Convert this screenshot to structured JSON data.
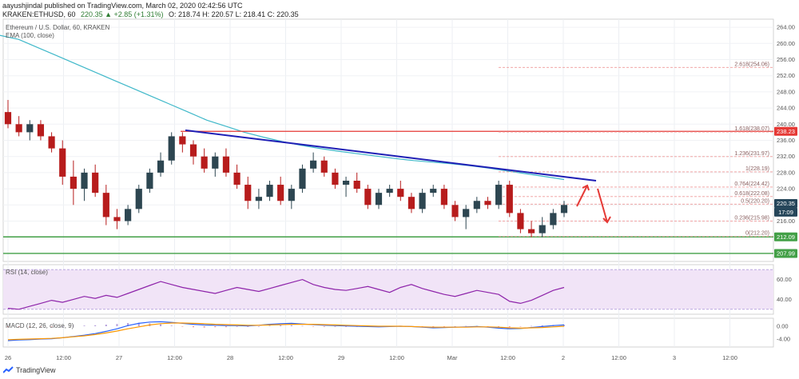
{
  "header": {
    "publisher": "aayushjindal published on TradingView.com, March 02, 2020 02:42:56 UTC",
    "ticker": "KRAKEN:ETHUSD, 60",
    "change": "220.35 ▲ +2.85 (+1.31%)",
    "ohlc": "O: 218.74 H: 220.57 L: 218.41 C: 220.35"
  },
  "overlays": {
    "symbol": "Ethereum / U.S. Dollar, 60, KRAKEN",
    "ema": "EMA (100, close)",
    "rsi": "RSI (14, close)",
    "macd": "MACD (12, 26, close, 9)"
  },
  "brand": "TradingView",
  "colors": {
    "up": "#2d4651",
    "down": "#b71c1c",
    "ema": "#3fb8c9",
    "trendline": "#1f1fb5",
    "resistance": "#e53935",
    "support": "#43a047",
    "fib": "#ef9a9a",
    "macd": "#2962ff",
    "signal": "#ff9800",
    "rsi": "#8e24aa"
  },
  "chart_data": [
    {
      "type": "candlestick",
      "panel": "price",
      "ylim": [
        206,
        266
      ],
      "y_ticks": [
        "264.00",
        "260.00",
        "256.00",
        "252.00",
        "248.00",
        "244.00",
        "240.00",
        "236.00",
        "232.00",
        "228.00",
        "224.00",
        "220.00",
        "216.00",
        "212.00",
        "208.00"
      ],
      "x_ticks": [
        "26",
        "12:00",
        "27",
        "12:00",
        "28",
        "12:00",
        "29",
        "12:00",
        "Mar",
        "12:00",
        "2",
        "12:00",
        "3",
        "12:00"
      ],
      "ema": [
        262,
        261,
        259,
        257,
        255,
        253,
        251,
        249,
        247,
        245,
        243,
        241,
        239.5,
        238,
        236.8,
        235.7,
        234.8,
        234,
        233.3,
        232.7,
        232.1,
        231.5,
        231,
        230.6,
        230.2,
        229.7,
        229.1,
        228.4,
        227.7,
        227,
        226.3
      ],
      "candles": [
        [
          243,
          246,
          239,
          240
        ],
        [
          240,
          242,
          237,
          238
        ],
        [
          238,
          241,
          236,
          240
        ],
        [
          240,
          241,
          236,
          237
        ],
        [
          237,
          238,
          233,
          234
        ],
        [
          234,
          236,
          225,
          227
        ],
        [
          227,
          231,
          220,
          224
        ],
        [
          224,
          229,
          221,
          228
        ],
        [
          228,
          230,
          222,
          223
        ],
        [
          223,
          225,
          215,
          217
        ],
        [
          217,
          219,
          214,
          216
        ],
        [
          216,
          220,
          215,
          219
        ],
        [
          219,
          225,
          218,
          224
        ],
        [
          224,
          229,
          223,
          228
        ],
        [
          228,
          233,
          227,
          231
        ],
        [
          231,
          238,
          230,
          237
        ],
        [
          237,
          238,
          233,
          235
        ],
        [
          235,
          236,
          230,
          232
        ],
        [
          232,
          234,
          228,
          229
        ],
        [
          229,
          233,
          227,
          232
        ],
        [
          232,
          234,
          227,
          228
        ],
        [
          228,
          230,
          224,
          225
        ],
        [
          225,
          227,
          219,
          221
        ],
        [
          221,
          224,
          219,
          222
        ],
        [
          222,
          226,
          221,
          225
        ],
        [
          225,
          227,
          220,
          221
        ],
        [
          221,
          225,
          219,
          224
        ],
        [
          224,
          230,
          223,
          229
        ],
        [
          229,
          233,
          228,
          231
        ],
        [
          231,
          232,
          227,
          228
        ],
        [
          228,
          229,
          224,
          225
        ],
        [
          225,
          227,
          222,
          226
        ],
        [
          226,
          228,
          223,
          224
        ],
        [
          224,
          225,
          219,
          220
        ],
        [
          220,
          224,
          219,
          223
        ],
        [
          223,
          225,
          222,
          224
        ],
        [
          224,
          226,
          221,
          222
        ],
        [
          222,
          223,
          218,
          219
        ],
        [
          219,
          224,
          218,
          223
        ],
        [
          223,
          225,
          222,
          224
        ],
        [
          224,
          225,
          219,
          220
        ],
        [
          220,
          221,
          216,
          217
        ],
        [
          217,
          220,
          214,
          219
        ],
        [
          219,
          222,
          218,
          221
        ],
        [
          221,
          222,
          219,
          220
        ],
        [
          220,
          226,
          219,
          225
        ],
        [
          225,
          226,
          217,
          218
        ],
        [
          218,
          219,
          213,
          214
        ],
        [
          214,
          216,
          212,
          213
        ],
        [
          213,
          217,
          212,
          215
        ],
        [
          215,
          219,
          214,
          218
        ],
        [
          218,
          221,
          217,
          220
        ]
      ],
      "fib_levels": [
        {
          "label": "2.618(254.06)",
          "value": 254.06
        },
        {
          "label": "1.618(238.07)",
          "value": 238.07
        },
        {
          "label": "1.236(231.97)",
          "value": 231.97
        },
        {
          "label": "1(228.19)",
          "value": 228.19
        },
        {
          "label": "0.764(224.42)",
          "value": 224.42
        },
        {
          "label": "0.618(222.08)",
          "value": 222.08
        },
        {
          "label": "0.5(220.20)",
          "value": 220.2
        },
        {
          "label": "0.236(215.98)",
          "value": 215.98
        },
        {
          "label": "0(212.20)",
          "value": 212.2
        }
      ],
      "resistance": 238.23,
      "support": [
        212.09,
        207.99
      ],
      "trendline": [
        238.5,
        226.0
      ],
      "price_badges": [
        {
          "label": "238.23",
          "value": 238.23,
          "color": "#e53935"
        },
        {
          "label": "220.35",
          "value": 220.35,
          "color": "#26465a"
        },
        {
          "label": "17:09",
          "value": 218.2,
          "color": "#26465a"
        },
        {
          "label": "212.09",
          "value": 212.09,
          "color": "#43a047"
        },
        {
          "label": "207.99",
          "value": 207.99,
          "color": "#43a047"
        }
      ]
    },
    {
      "type": "line",
      "panel": "rsi",
      "ylim": [
        25,
        75
      ],
      "y_ticks": [
        "60.00",
        "40.00"
      ],
      "band": [
        30,
        70
      ],
      "values": [
        31,
        30,
        33,
        36,
        39,
        37,
        40,
        43,
        41,
        44,
        42,
        46,
        50,
        54,
        58,
        55,
        52,
        50,
        48,
        46,
        49,
        52,
        50,
        48,
        51,
        54,
        57,
        60,
        55,
        52,
        50,
        49,
        51,
        53,
        50,
        47,
        52,
        55,
        51,
        48,
        45,
        43,
        46,
        49,
        47,
        45,
        38,
        36,
        39,
        44,
        49,
        52
      ]
    },
    {
      "type": "line",
      "panel": "macd",
      "ylim": [
        -6.5,
        2.5
      ],
      "y_ticks": [
        "0.00",
        "-4.00"
      ],
      "macd": [
        -4.5,
        -4.3,
        -4.2,
        -4,
        -3.9,
        -3.6,
        -3.2,
        -2.8,
        -2.3,
        -1.6,
        -0.8,
        0.2,
        0.9,
        1.3,
        1.4,
        1.2,
        0.9,
        0.6,
        0.4,
        0.3,
        0.2,
        0.2,
        0.1,
        0.3,
        0.6,
        0.8,
        0.9,
        0.7,
        0.5,
        0.3,
        0.2,
        0.1,
        0,
        -0.1,
        -0.2,
        -0.1,
        0,
        -0.1,
        -0.3,
        -0.5,
        -0.4,
        -0.3,
        -0.2,
        -0.1,
        -0.3,
        -0.6,
        -0.8,
        -0.7,
        -0.4,
        -0.1,
        0.2,
        0.4
      ],
      "signal": [
        -4.2,
        -4.1,
        -4,
        -3.9,
        -3.8,
        -3.6,
        -3.3,
        -3,
        -2.6,
        -2.1,
        -1.5,
        -0.8,
        -0.2,
        0.4,
        0.8,
        1,
        1,
        0.9,
        0.8,
        0.6,
        0.5,
        0.4,
        0.3,
        0.3,
        0.4,
        0.5,
        0.6,
        0.6,
        0.6,
        0.5,
        0.4,
        0.3,
        0.2,
        0.1,
        0,
        0,
        0,
        -0.1,
        -0.2,
        -0.3,
        -0.3,
        -0.3,
        -0.3,
        -0.2,
        -0.2,
        -0.3,
        -0.5,
        -0.6,
        -0.5,
        -0.4,
        -0.2,
        0
      ]
    }
  ]
}
